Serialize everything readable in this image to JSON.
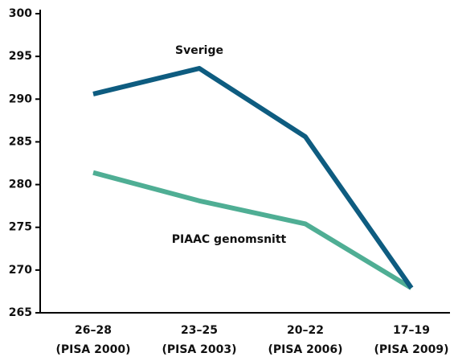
{
  "chart_data": {
    "type": "line",
    "categories": [
      [
        "26–28",
        "(PISA 2000)"
      ],
      [
        "23–25",
        "(PISA 2003)"
      ],
      [
        "20–22",
        "(PISA 2006)"
      ],
      [
        "17–19",
        "(PISA 2009)"
      ]
    ],
    "series": [
      {
        "name": "Sverige",
        "color": "#0e5c80",
        "values": [
          290.6,
          293.6,
          285.6,
          267.9
        ]
      },
      {
        "name": "PIAAC genomsnitt",
        "color": "#4fae94",
        "values": [
          281.4,
          278.1,
          275.4,
          267.9
        ]
      }
    ],
    "ylim": [
      265,
      300
    ],
    "yticks": [
      265,
      270,
      275,
      280,
      285,
      290,
      295,
      300
    ],
    "grid": false
  }
}
